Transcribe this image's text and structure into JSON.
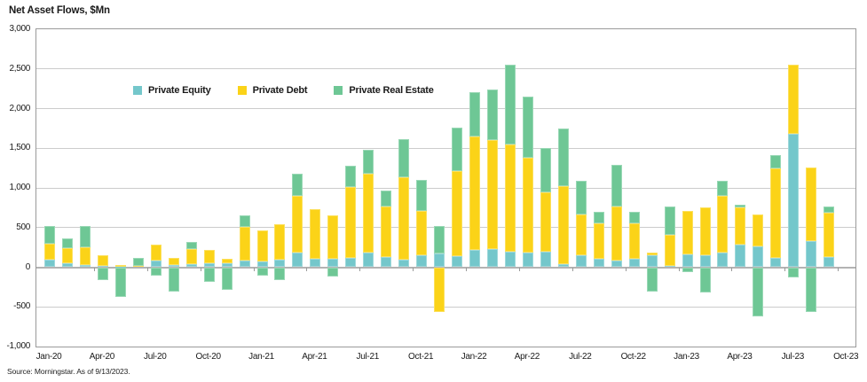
{
  "chart_data": {
    "type": "bar",
    "stacked": true,
    "title": "Net Asset Flows, $Mn",
    "unit": "$Mn",
    "grid": true,
    "legend_position": "top-left-inside",
    "ylim": [
      -1000,
      3000
    ],
    "y_tick_values": [
      3000,
      2500,
      2000,
      1500,
      1000,
      500,
      0,
      -500,
      -1000
    ],
    "y_tick_labels": [
      "3,000",
      "2,500",
      "2,000",
      "1,500",
      "1,000",
      "500",
      "0",
      "-500",
      "-1,000"
    ],
    "x_tick_labels": [
      "Jan-20",
      "Apr-20",
      "Jul-20",
      "Oct-20",
      "Jan-21",
      "Apr-21",
      "Jul-21",
      "Oct-21",
      "Jan-22",
      "Apr-22",
      "Jul-22",
      "Oct-22",
      "Jan-23",
      "Apr-23",
      "Jul-23",
      "Oct-23"
    ],
    "categories": [
      "Jan-20",
      "Feb-20",
      "Mar-20",
      "Apr-20",
      "May-20",
      "Jun-20",
      "Jul-20",
      "Aug-20",
      "Sep-20",
      "Oct-20",
      "Nov-20",
      "Dec-20",
      "Jan-21",
      "Feb-21",
      "Mar-21",
      "Apr-21",
      "May-21",
      "Jun-21",
      "Jul-21",
      "Aug-21",
      "Sep-21",
      "Oct-21",
      "Nov-21",
      "Dec-21",
      "Jan-22",
      "Feb-22",
      "Mar-22",
      "Apr-22",
      "May-22",
      "Jun-22",
      "Jul-22",
      "Aug-22",
      "Sep-22",
      "Oct-22",
      "Nov-22",
      "Dec-22",
      "Jan-23",
      "Feb-23",
      "Mar-23",
      "Apr-23",
      "May-23",
      "Jun-23",
      "Jul-23",
      "Aug-23",
      "Sep-23"
    ],
    "series": [
      {
        "name": "Private Equity",
        "color": "#74c7cb",
        "values": [
          90,
          50,
          30,
          20,
          10,
          0,
          85,
          30,
          35,
          55,
          45,
          80,
          75,
          90,
          180,
          110,
          110,
          120,
          180,
          130,
          90,
          155,
          175,
          145,
          215,
          230,
          195,
          185,
          195,
          35,
          155,
          110,
          80,
          110,
          150,
          20,
          165,
          155,
          180,
          290,
          260,
          120,
          1680,
          330,
          130
        ]
      },
      {
        "name": "Private Debt",
        "color": "#fbd318",
        "values": [
          210,
          190,
          225,
          130,
          20,
          15,
          200,
          90,
          195,
          160,
          60,
          430,
          390,
          455,
          715,
          625,
          540,
          890,
          995,
          630,
          1040,
          550,
          -560,
          1065,
          1430,
          1370,
          1350,
          1190,
          745,
          985,
          515,
          445,
          680,
          445,
          35,
          390,
          545,
          600,
          720,
          460,
          410,
          1130,
          870,
          925,
          560
        ]
      },
      {
        "name": "Private Real Estate",
        "color": "#6ec795",
        "values": [
          220,
          120,
          270,
          -165,
          -370,
          100,
          -110,
          -310,
          85,
          -180,
          -280,
          145,
          -110,
          -165,
          280,
          0,
          -120,
          265,
          305,
          210,
          480,
          400,
          345,
          545,
          565,
          640,
          1005,
          780,
          565,
          725,
          420,
          140,
          530,
          140,
          -305,
          355,
          -65,
          -320,
          185,
          40,
          -615,
          165,
          -130,
          -560,
          80
        ]
      }
    ],
    "source": "Source: Morningstar. As of 9/13/2023."
  }
}
